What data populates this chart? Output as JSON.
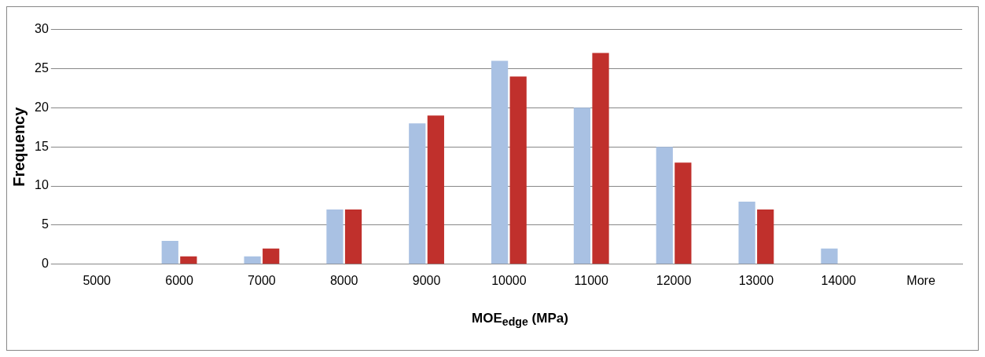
{
  "chart_data": {
    "type": "bar",
    "xlabel": "MOE$_{edge}$ (MPa)",
    "ylabel": "Frequency",
    "categories": [
      "5000",
      "6000",
      "7000",
      "8000",
      "9000",
      "10000",
      "11000",
      "12000",
      "13000",
      "14000",
      "More"
    ],
    "series": [
      {
        "color": "#a9c1e3",
        "values": [
          0,
          3,
          1,
          7,
          18,
          26,
          20,
          15,
          8,
          2,
          0
        ]
      },
      {
        "color": "#c0302c",
        "values": [
          0,
          1,
          2,
          7,
          19,
          24,
          27,
          13,
          7,
          0,
          0
        ]
      }
    ],
    "ylim": [
      0,
      30
    ],
    "yticks": [
      0,
      5,
      10,
      15,
      20,
      25,
      30
    ],
    "grid": "y",
    "legend": false
  }
}
